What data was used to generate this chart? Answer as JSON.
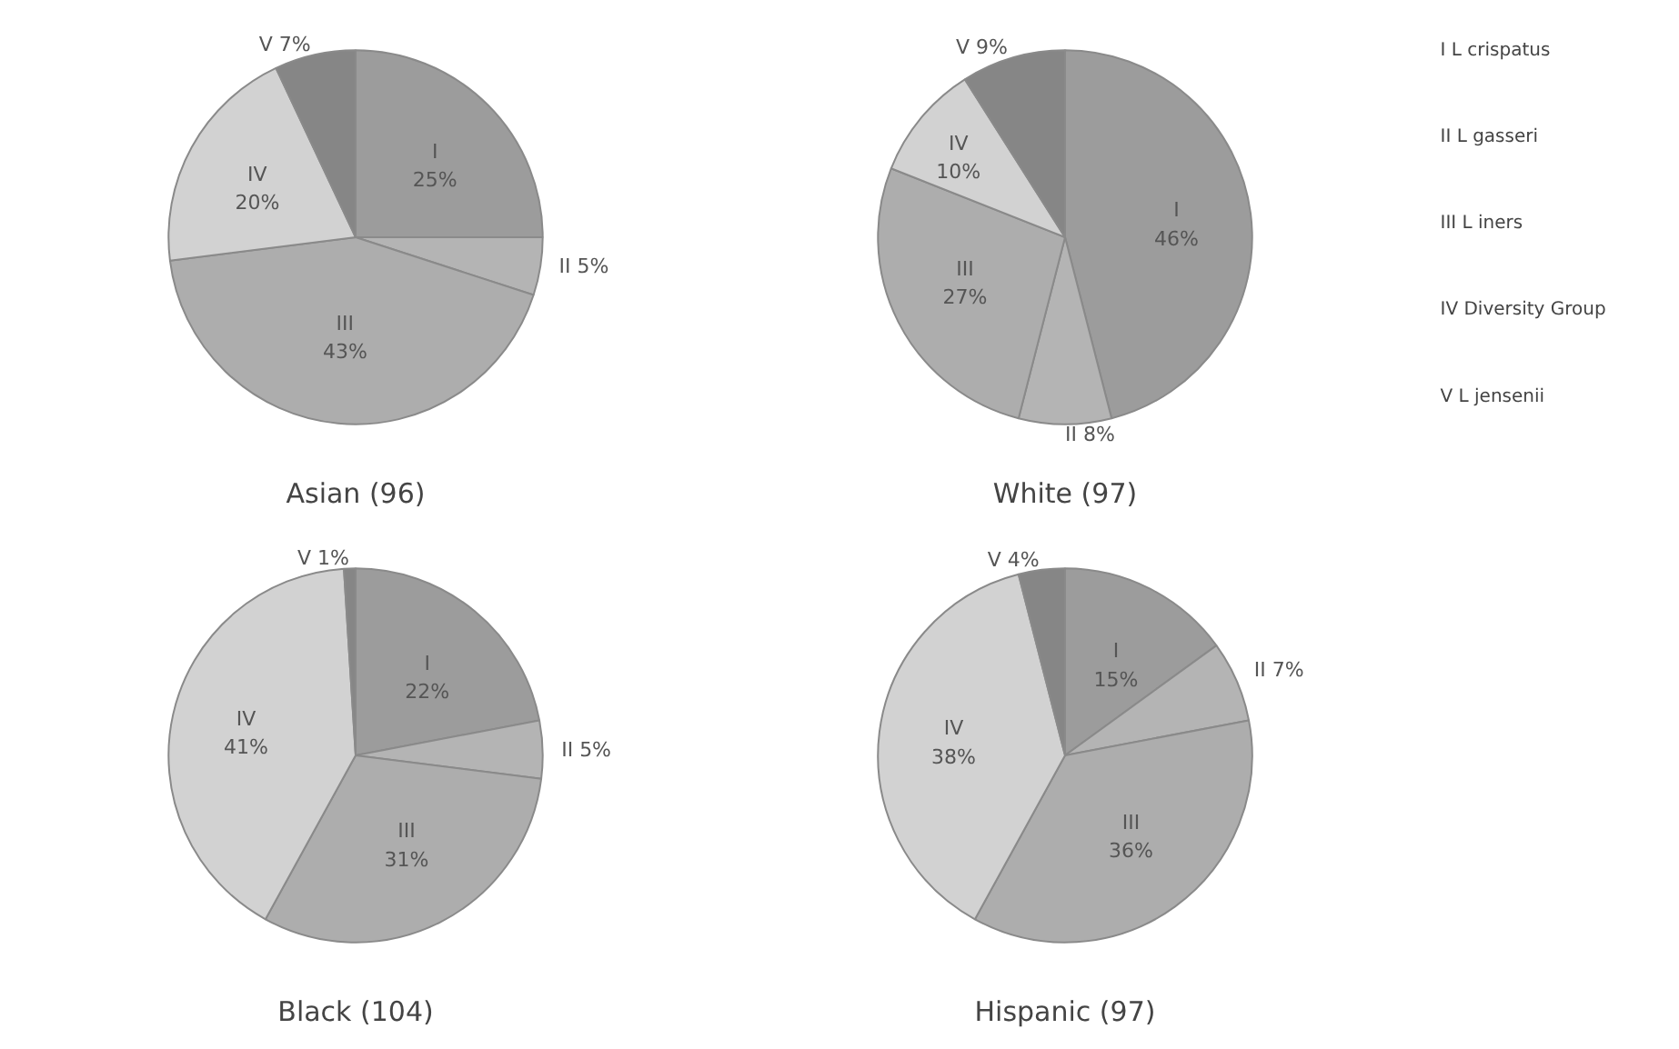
{
  "chart_data": [
    {
      "type": "pie",
      "title": "Asian (96)",
      "categories": [
        "I",
        "II",
        "III",
        "IV",
        "V"
      ],
      "values": [
        25,
        5,
        43,
        20,
        7
      ],
      "value_labels": [
        "25%",
        "5%",
        "43%",
        "20%",
        "7%"
      ],
      "colors": [
        "#9c9c9c",
        "#b4b4b4",
        "#adadad",
        "#d2d2d2",
        "#868686"
      ]
    },
    {
      "type": "pie",
      "title": "White (97)",
      "categories": [
        "I",
        "II",
        "III",
        "IV",
        "V"
      ],
      "values": [
        46,
        8,
        27,
        10,
        9
      ],
      "value_labels": [
        "46%",
        "8%",
        "27%",
        "10%",
        "9%"
      ],
      "colors": [
        "#9c9c9c",
        "#b4b4b4",
        "#adadad",
        "#d2d2d2",
        "#868686"
      ]
    },
    {
      "type": "pie",
      "title": "Black (104)",
      "categories": [
        "I",
        "II",
        "III",
        "IV",
        "V"
      ],
      "values": [
        22,
        5,
        31,
        41,
        1
      ],
      "value_labels": [
        "22%",
        "5%",
        "31%",
        "41%",
        "1%"
      ],
      "colors": [
        "#9c9c9c",
        "#b4b4b4",
        "#adadad",
        "#d2d2d2",
        "#868686"
      ]
    },
    {
      "type": "pie",
      "title": "Hispanic (97)",
      "categories": [
        "I",
        "II",
        "III",
        "IV",
        "V"
      ],
      "values": [
        15,
        7,
        36,
        38,
        4
      ],
      "value_labels": [
        "15%",
        "7%",
        "36%",
        "38%",
        "4%"
      ],
      "colors": [
        "#9c9c9c",
        "#b4b4b4",
        "#adadad",
        "#d2d2d2",
        "#868686"
      ]
    },
    {
      "type": "other",
      "annotations": [
        "I L crispatus",
        "II L gasseri",
        "III L iners",
        "IV Diversity Group",
        "V L jensenii"
      ]
    }
  ]
}
